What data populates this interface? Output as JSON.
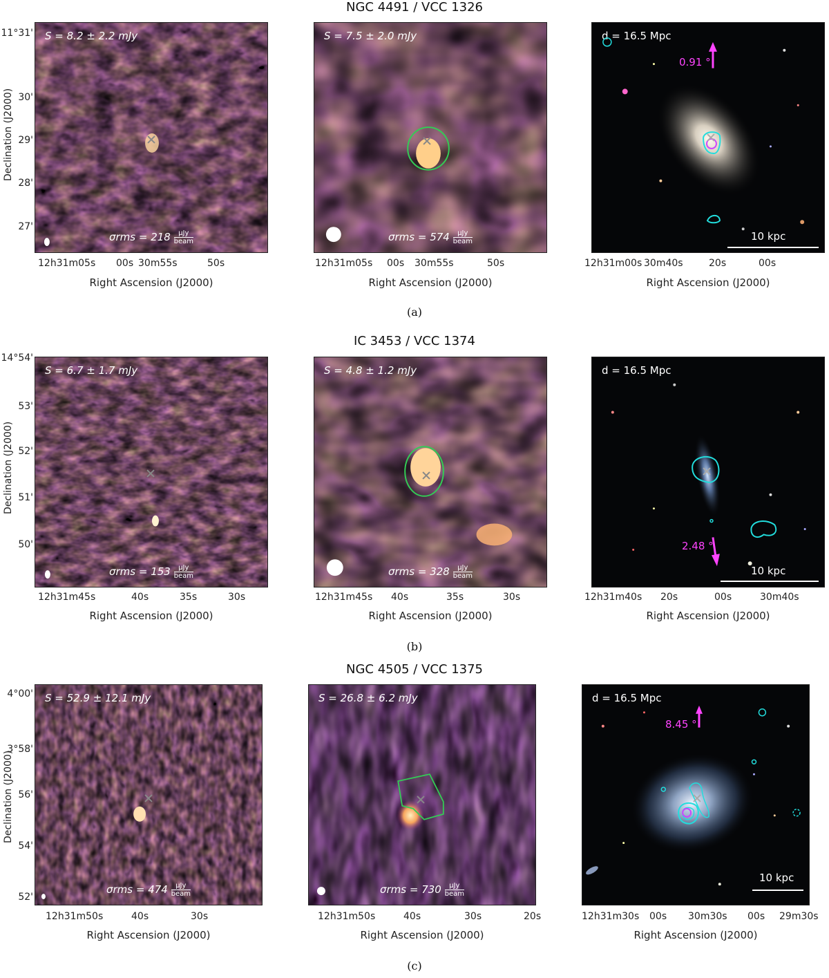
{
  "rows": [
    {
      "title": "NGC 4491 / VCC 1326",
      "caption": "(a)",
      "flux_left": "S = 8.2 ± 2.2 mJy",
      "flux_mid": "S = 7.5 ± 2.0 mJy",
      "rms_left": "σrms = 218",
      "rms_mid": "σrms = 574",
      "distance": "d = 16.5 Mpc",
      "angle": "0.91 °",
      "scale": "10 kpc",
      "yticks": [
        "11°31'",
        "30'",
        "29'",
        "28'",
        "27'"
      ],
      "xticks_left": [
        "12h31m05s",
        "00s",
        "30m55s",
        "50s"
      ],
      "xticks_mid": [
        "12h31m05s",
        "00s",
        "30m55s",
        "50s"
      ],
      "xticks_right": [
        "12h31m00s",
        "30m40s",
        "20s",
        "00s"
      ]
    },
    {
      "title": "IC 3453 / VCC 1374",
      "caption": "(b)",
      "flux_left": "S = 6.7 ± 1.7 mJy",
      "flux_mid": "S = 4.8 ± 1.2 mJy",
      "rms_left": "σrms = 153",
      "rms_mid": "σrms = 328",
      "distance": "d = 16.5 Mpc",
      "angle": "2.48 °",
      "scale": "10 kpc",
      "yticks": [
        "14°54'",
        "53'",
        "52'",
        "51'",
        "50'"
      ],
      "xticks_left": [
        "12h31m45s",
        "40s",
        "35s",
        "30s"
      ],
      "xticks_mid": [
        "12h31m45s",
        "40s",
        "35s",
        "30s"
      ],
      "xticks_right": [
        "12h31m40s",
        "20s",
        "00s",
        "30m40s"
      ]
    },
    {
      "title": "NGC 4505 / VCC 1375",
      "caption": "(c)",
      "flux_left": "S = 52.9 ± 12.1 mJy",
      "flux_mid": "S = 26.8 ± 6.2 mJy",
      "rms_left": "σrms = 474",
      "rms_mid": "σrms = 730",
      "distance": "d = 16.5 Mpc",
      "angle": "8.45 °",
      "scale": "10 kpc",
      "yticks": [
        "4°00'",
        "3°58'",
        "56'",
        "54'",
        "52'"
      ],
      "xticks_left": [
        "12h31m50s",
        "40s",
        "30s"
      ],
      "xticks_mid": [
        "12h31m50s",
        "40s",
        "30s",
        "20s"
      ],
      "xticks_right": [
        "12h31m30s",
        "00s",
        "30m30s",
        "00s",
        "29m30s"
      ]
    }
  ],
  "axis": {
    "ylabel": "Declination (J2000)",
    "xlabel": "Right Ascension (J2000)",
    "unit_num": "μJy",
    "unit_den": "beam"
  },
  "colors": {
    "map_dark": "#000000",
    "map_mid": "#8b2e7e",
    "map_hot": "#f7a45c",
    "contour_green": "#33cc55",
    "contour_cyan": "#22dddd",
    "contour_magenta": "#cc44ff",
    "arrow": "#ff44ff"
  }
}
